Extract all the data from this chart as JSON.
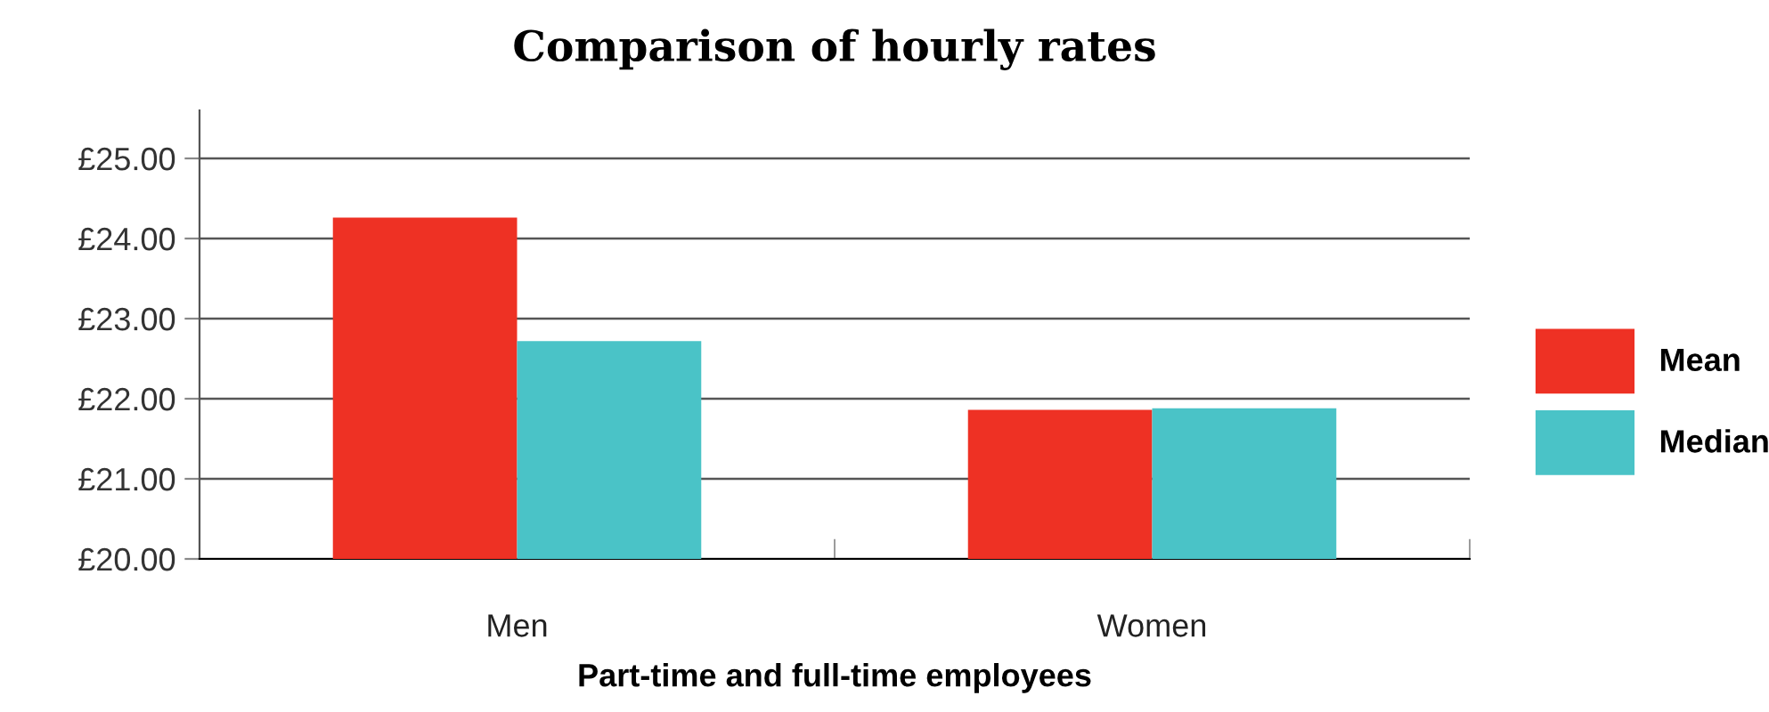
{
  "chart_data": {
    "type": "bar",
    "title": "Comparison of hourly rates",
    "xlabel": "Part-time and full-time employees",
    "categories": [
      "Men",
      "Women"
    ],
    "series": [
      {
        "name": "Mean",
        "color": "#ee3124",
        "values": [
          24.26,
          21.86
        ]
      },
      {
        "name": "Median",
        "color": "#4ac3c7",
        "values": [
          22.72,
          21.88
        ]
      }
    ],
    "ylim": [
      20,
      25.6
    ],
    "yticks": [
      {
        "value": 20,
        "label": "£20.00"
      },
      {
        "value": 21,
        "label": "£21.00"
      },
      {
        "value": 22,
        "label": "£22.00"
      },
      {
        "value": 23,
        "label": "£23.00"
      },
      {
        "value": 24,
        "label": "£24.00"
      },
      {
        "value": 25,
        "label": "£25.00"
      }
    ],
    "grid": "y",
    "legend": "right"
  }
}
